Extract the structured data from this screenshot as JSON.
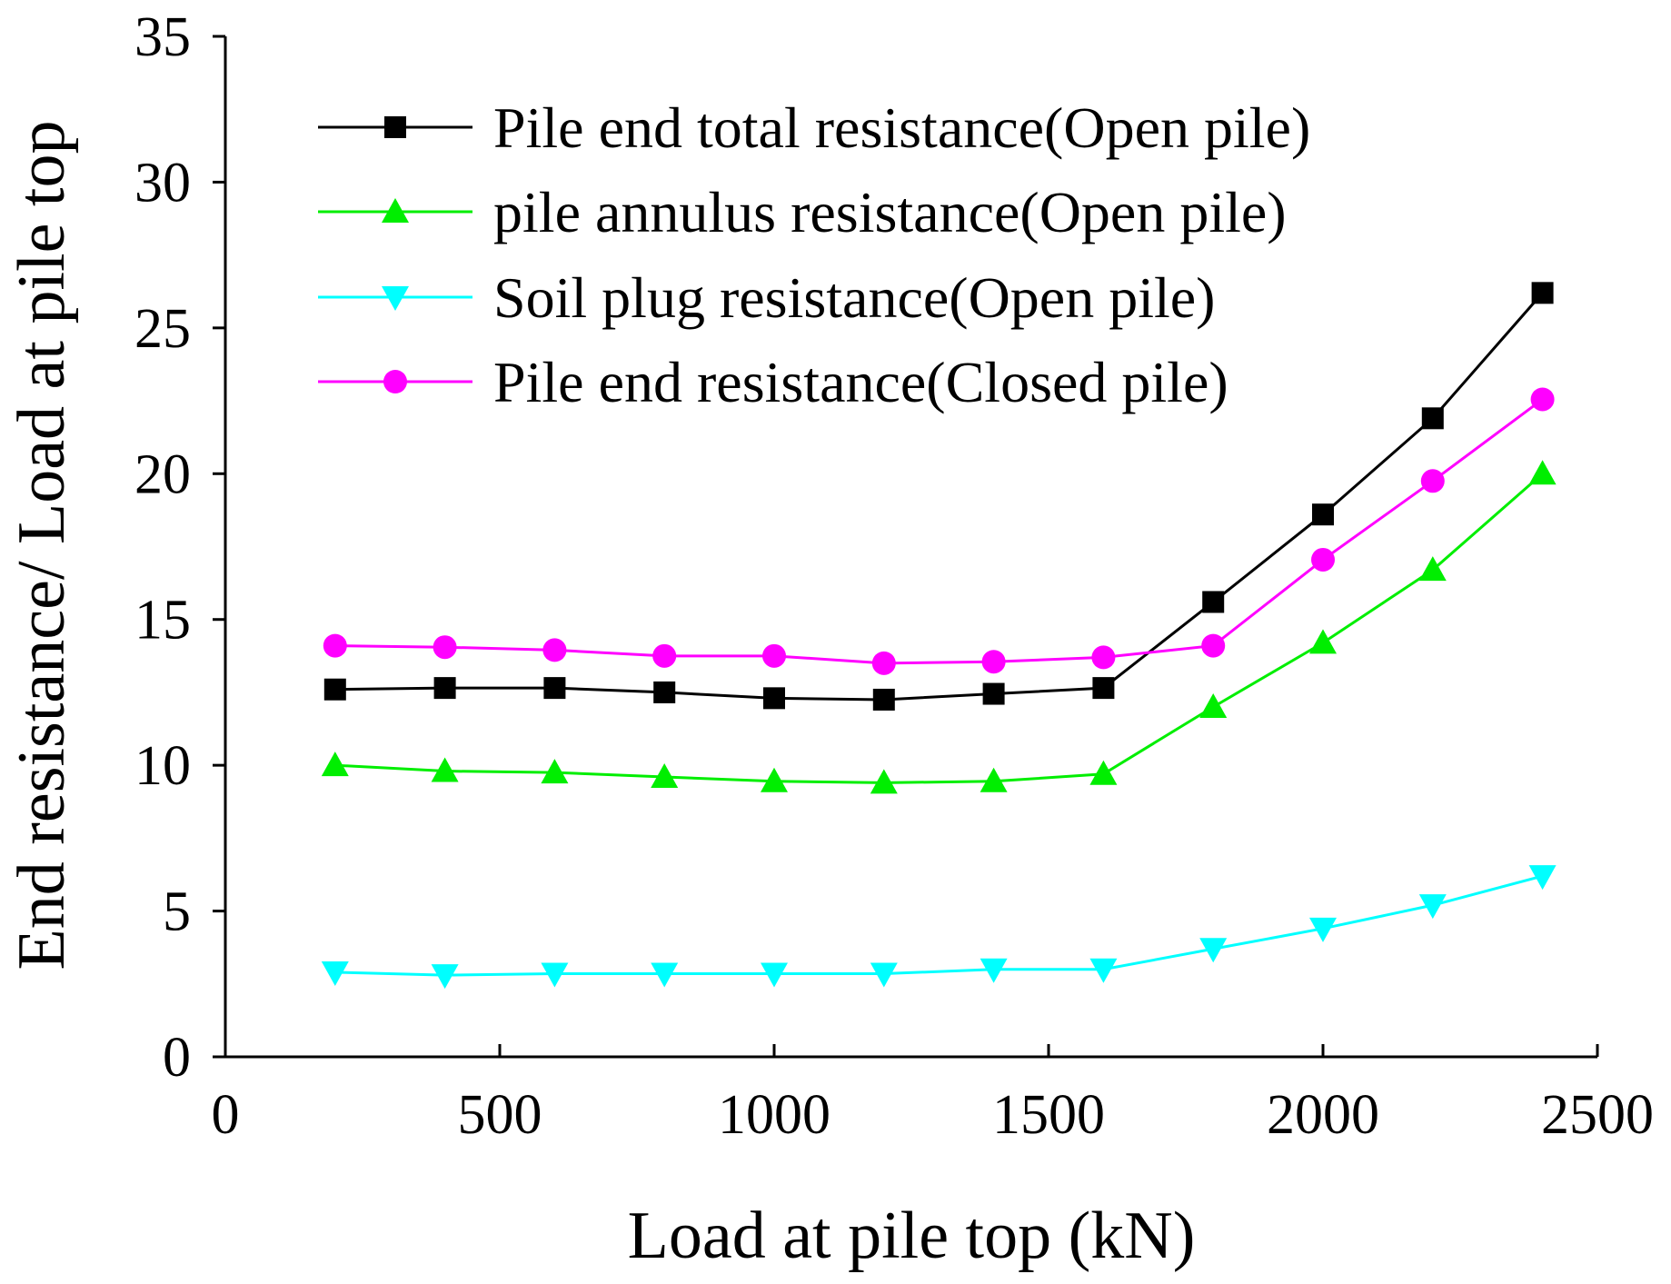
{
  "chart_data": {
    "type": "line",
    "title": "",
    "xlabel": "Load at pile top (kN)",
    "ylabel": "End resistance/ Load at pile top",
    "xlim": [
      0,
      2500
    ],
    "ylim": [
      0,
      35
    ],
    "xticks": [
      0,
      500,
      1000,
      1500,
      2000,
      2500
    ],
    "yticks": [
      0,
      5,
      10,
      15,
      20,
      25,
      30,
      35
    ],
    "grid": false,
    "legend_position": "top-left",
    "x": [
      200,
      400,
      600,
      800,
      1000,
      1200,
      1400,
      1600,
      1800,
      2000,
      2200,
      2400
    ],
    "series": [
      {
        "name": "Pile end total resistance(Open pile)",
        "color": "#000000",
        "marker": "square",
        "values": [
          12.6,
          12.65,
          12.65,
          12.5,
          12.3,
          12.25,
          12.45,
          12.65,
          15.6,
          18.6,
          21.9,
          26.2
        ]
      },
      {
        "name": "pile annulus resistance(Open pile)",
        "color": "#00ee00",
        "marker": "triangle-up",
        "values": [
          10.0,
          9.8,
          9.75,
          9.6,
          9.45,
          9.4,
          9.45,
          9.7,
          12.0,
          14.2,
          16.7,
          20.0
        ]
      },
      {
        "name": "Soil plug resistance(Open pile)",
        "color": "#00ffff",
        "marker": "triangle-down",
        "values": [
          2.9,
          2.8,
          2.85,
          2.85,
          2.85,
          2.85,
          3.0,
          3.0,
          3.7,
          4.4,
          5.2,
          6.2
        ]
      },
      {
        "name": "Pile end resistance(Closed pile)",
        "color": "#ff00ff",
        "marker": "circle",
        "values": [
          14.1,
          14.05,
          13.95,
          13.75,
          13.75,
          13.5,
          13.55,
          13.7,
          14.1,
          17.05,
          19.75,
          22.55
        ]
      }
    ]
  }
}
